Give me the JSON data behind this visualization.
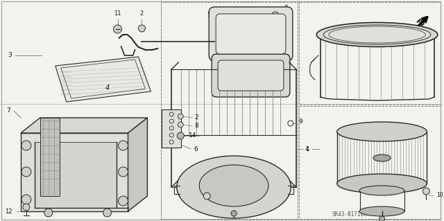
{
  "bg_color": "#f5f5f0",
  "line_color": "#2a2a2a",
  "text_color": "#111111",
  "fig_width": 6.4,
  "fig_height": 3.19,
  "dpi": 100,
  "diagram_ref": "SR43-B1710A",
  "gray_light": "#c8c8c8",
  "gray_mid": "#888888",
  "gray_dark": "#555555"
}
